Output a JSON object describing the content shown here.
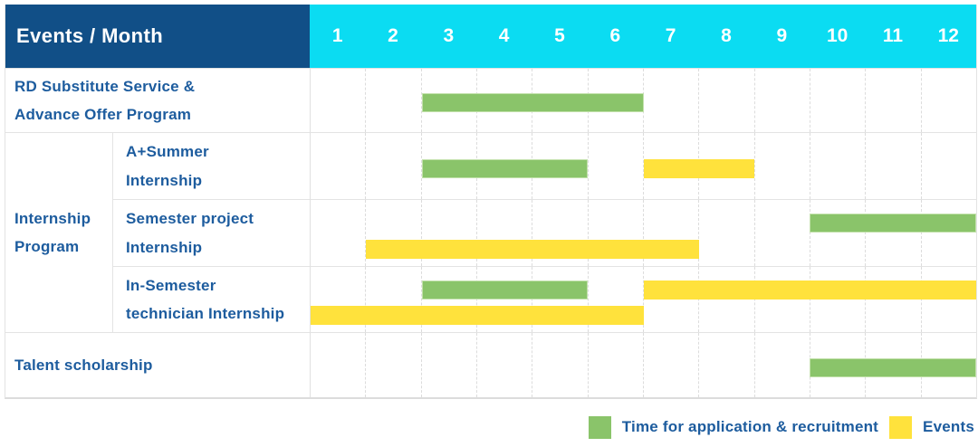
{
  "header": {
    "title": "Events / Month",
    "months": [
      "1",
      "2",
      "3",
      "4",
      "5",
      "6",
      "7",
      "8",
      "9",
      "10",
      "11",
      "12"
    ]
  },
  "colors": {
    "navy_header": "#114f87",
    "cyan_header": "#0bdcf2",
    "application_green": "#8ac46a",
    "events_yellow": "#ffe23c",
    "label_blue": "#1d5c9e",
    "grid_gray": "#e3e3e3"
  },
  "chart_data": {
    "type": "bar",
    "subtype": "gantt-timeline",
    "title": "Events / Month",
    "x_categories": [
      1,
      2,
      3,
      4,
      5,
      6,
      7,
      8,
      9,
      10,
      11,
      12
    ],
    "x_range": [
      1,
      12
    ],
    "grid": true,
    "legend_position": "bottom-right",
    "series": [
      {
        "key": "application",
        "name": "Time for application & recruitment",
        "color": "#8ac46a"
      },
      {
        "key": "events",
        "name": "Events",
        "color": "#ffe23c"
      }
    ],
    "rows": [
      {
        "group": null,
        "label": "RD Substitute Service &\nAdvance Offer Program",
        "bars": [
          {
            "series": "application",
            "start_month": 3,
            "end_month": 6,
            "lane": "center"
          }
        ]
      },
      {
        "group": "Internship\nProgram",
        "label": "A+Summer\nInternship",
        "bars": [
          {
            "series": "application",
            "start_month": 3,
            "end_month": 5,
            "lane": "center"
          },
          {
            "series": "events",
            "start_month": 7,
            "end_month": 8,
            "lane": "center"
          }
        ]
      },
      {
        "group": "Internship\nProgram",
        "label": "Semester project\nInternship",
        "bars": [
          {
            "series": "application",
            "start_month": 10,
            "end_month": 12,
            "lane": "top"
          },
          {
            "series": "events",
            "start_month": 2,
            "end_month": 7,
            "lane": "bottom"
          }
        ]
      },
      {
        "group": "Internship\nProgram",
        "label": "In-Semester\ntechnician Internship",
        "bars": [
          {
            "series": "application",
            "start_month": 3,
            "end_month": 5,
            "lane": "top"
          },
          {
            "series": "events",
            "start_month": 7,
            "end_month": 12,
            "lane": "top"
          },
          {
            "series": "events",
            "start_month": 1,
            "end_month": 6,
            "lane": "bottom"
          }
        ]
      },
      {
        "group": null,
        "label": "Talent scholarship",
        "bars": [
          {
            "series": "application",
            "start_month": 10,
            "end_month": 12,
            "lane": "center"
          }
        ]
      }
    ]
  },
  "legend": {
    "items": [
      {
        "series": "application",
        "label": "Time for application & recruitment"
      },
      {
        "series": "events",
        "label": "Events"
      }
    ]
  }
}
